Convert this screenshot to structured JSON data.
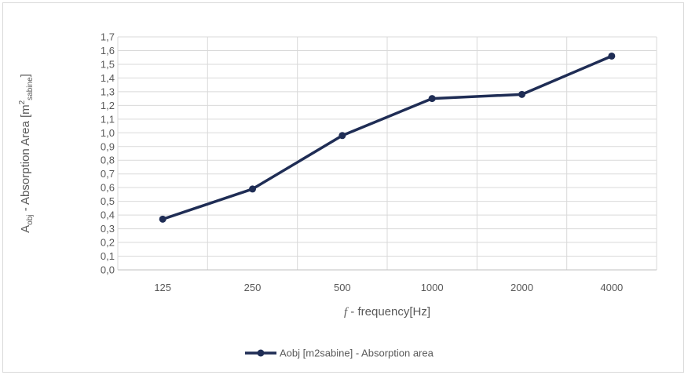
{
  "chart_data": {
    "type": "line",
    "categories": [
      "125",
      "250",
      "500",
      "1000",
      "2000",
      "4000"
    ],
    "series": [
      {
        "name": "Aobj [m2sabine] - Absorption area",
        "values": [
          0.37,
          0.59,
          0.98,
          1.25,
          1.28,
          1.56
        ]
      }
    ],
    "ylim": [
      0,
      1.7
    ],
    "yticks": [
      "0,0",
      "0,1",
      "0,2",
      "0,3",
      "0,4",
      "0,5",
      "0,6",
      "0,7",
      "0,8",
      "0,9",
      "1,0",
      "1,1",
      "1,2",
      "1,3",
      "1,4",
      "1,5",
      "1,6",
      "1,7"
    ],
    "ylabel": {
      "main": "A",
      "main_sub": "obj",
      "mid": " - Absorption Area [m",
      "sup": "2",
      "sub": "sabine",
      "end": "]"
    },
    "xlabel": {
      "italic": "f",
      "rest": " - frequency[Hz]"
    },
    "grid": true,
    "legend_position": "bottom",
    "colors": {
      "series": "#1f2d55",
      "grid": "#d9d9d9",
      "text": "#595959"
    }
  }
}
